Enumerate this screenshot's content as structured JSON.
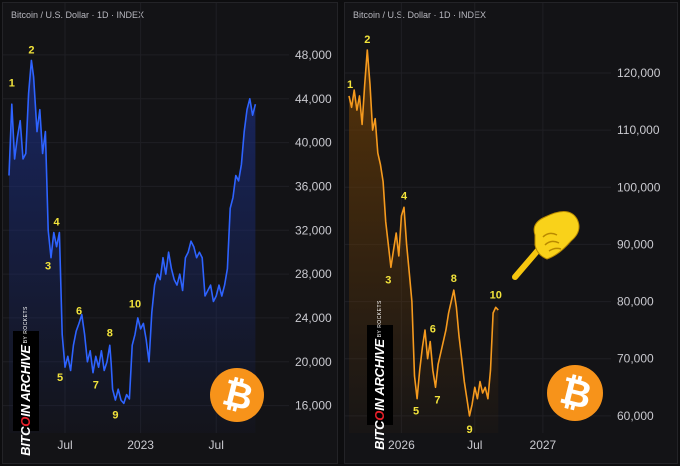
{
  "chart_data": [
    {
      "type": "line",
      "title": "Bitcoin / U.S. Dollar · 1D · INDEX",
      "line_color": "#2e63ff",
      "fill_color": "#1a2c7a",
      "ylim": [
        13500,
        50000
      ],
      "xlim": [
        0,
        100
      ],
      "y_ticks": [
        16000,
        20000,
        24000,
        28000,
        32000,
        36000,
        40000,
        44000,
        48000
      ],
      "y_tick_labels": [
        "16,000",
        "20,000",
        "24,000",
        "28,000",
        "32,000",
        "36,000",
        "40,000",
        "44,000",
        "48,000"
      ],
      "x_ticks": [
        {
          "x": 20,
          "label": "Jul"
        },
        {
          "x": 47,
          "label": "2023"
        },
        {
          "x": 74,
          "label": "Jul"
        }
      ],
      "series": [
        {
          "values": [
            [
              0,
              37000
            ],
            [
              1,
              43500
            ],
            [
              2,
              38500
            ],
            [
              3,
              40500
            ],
            [
              4,
              42000
            ],
            [
              5,
              38500
            ],
            [
              6,
              39000
            ],
            [
              7,
              44500
            ],
            [
              8,
              47500
            ],
            [
              8.8,
              46000
            ],
            [
              10,
              41000
            ],
            [
              11,
              43000
            ],
            [
              12,
              39000
            ],
            [
              13,
              41000
            ],
            [
              14,
              32000
            ],
            [
              15,
              29500
            ],
            [
              16,
              31800
            ],
            [
              17,
              30500
            ],
            [
              18,
              31800
            ],
            [
              19,
              22500
            ],
            [
              20,
              19500
            ],
            [
              21,
              20500
            ],
            [
              22,
              19200
            ],
            [
              23,
              21500
            ],
            [
              24,
              22800
            ],
            [
              25,
              23500
            ],
            [
              26,
              24300
            ],
            [
              27,
              22500
            ],
            [
              28,
              20000
            ],
            [
              29,
              21000
            ],
            [
              30,
              19000
            ],
            [
              31,
              20500
            ],
            [
              32,
              19500
            ],
            [
              33,
              21000
            ],
            [
              34,
              19200
            ],
            [
              35,
              20000
            ],
            [
              36,
              21500
            ],
            [
              36.5,
              19800
            ],
            [
              37,
              17500
            ],
            [
              38,
              16500
            ],
            [
              39,
              17500
            ],
            [
              40,
              16500
            ],
            [
              41,
              16200
            ],
            [
              42,
              17000
            ],
            [
              43,
              16600
            ],
            [
              44,
              21500
            ],
            [
              45,
              22500
            ],
            [
              46,
              24000
            ],
            [
              47,
              23000
            ],
            [
              48,
              23500
            ],
            [
              49,
              22000
            ],
            [
              50,
              20000
            ],
            [
              51,
              24500
            ],
            [
              52,
              27000
            ],
            [
              53,
              28000
            ],
            [
              54,
              27500
            ],
            [
              55,
              29500
            ],
            [
              56,
              28000
            ],
            [
              57,
              30000
            ],
            [
              58,
              28500
            ],
            [
              59,
              27500
            ],
            [
              60,
              27000
            ],
            [
              61,
              28000
            ],
            [
              62,
              26500
            ],
            [
              63,
              29500
            ],
            [
              64,
              30000
            ],
            [
              65,
              31000
            ],
            [
              66,
              30500
            ],
            [
              67,
              29500
            ],
            [
              68,
              30000
            ],
            [
              69,
              29500
            ],
            [
              70,
              26000
            ],
            [
              71,
              26500
            ],
            [
              72,
              27000
            ],
            [
              73,
              25500
            ],
            [
              74,
              26000
            ],
            [
              75,
              27000
            ],
            [
              76,
              26000
            ],
            [
              77,
              27000
            ],
            [
              78,
              28500
            ],
            [
              79,
              34000
            ],
            [
              80,
              35000
            ],
            [
              81,
              37000
            ],
            [
              82,
              36500
            ],
            [
              83,
              38000
            ],
            [
              84,
              41000
            ],
            [
              85,
              43000
            ],
            [
              86,
              44000
            ],
            [
              87,
              42500
            ],
            [
              88,
              43500
            ]
          ]
        }
      ],
      "annotations": [
        {
          "label": "1",
          "x": 1,
          "y": 44500,
          "dx": 0,
          "dy": -7
        },
        {
          "label": "2",
          "x": 8,
          "y": 47500,
          "dx": 0,
          "dy": -7
        },
        {
          "label": "3",
          "x": 15,
          "y": 29500,
          "dx": -3,
          "dy": 12
        },
        {
          "label": "4",
          "x": 17,
          "y": 31800,
          "dx": 0,
          "dy": -7
        },
        {
          "label": "5",
          "x": 20,
          "y": 19500,
          "dx": -5,
          "dy": 14
        },
        {
          "label": "6",
          "x": 25,
          "y": 23500,
          "dx": 0,
          "dy": -9
        },
        {
          "label": "7",
          "x": 31,
          "y": 19000,
          "dx": 0,
          "dy": 16
        },
        {
          "label": "8",
          "x": 36,
          "y": 21500,
          "dx": 0,
          "dy": -9
        },
        {
          "label": "9",
          "x": 38,
          "y": 16200,
          "dx": 0,
          "dy": 15
        },
        {
          "label": "10",
          "x": 45,
          "y": 23500,
          "dx": 0,
          "dy": -16
        }
      ]
    },
    {
      "type": "line",
      "title": "Bitcoin / U.S. Dollar · 1D · INDEX",
      "line_color": "#f59a1e",
      "fill_color": "#6b3d05",
      "ylim": [
        57000,
        127000
      ],
      "xlim": [
        0,
        100
      ],
      "y_ticks": [
        60000,
        70000,
        80000,
        90000,
        100000,
        110000,
        120000
      ],
      "y_tick_labels": [
        "60,000",
        "70,000",
        "80,000",
        "90,000",
        "100,000",
        "110,000",
        "120,000"
      ],
      "x_ticks": [
        {
          "x": 20,
          "label": "2026"
        },
        {
          "x": 48,
          "label": "Jul"
        },
        {
          "x": 74,
          "label": "2027"
        }
      ],
      "series": [
        {
          "values": [
            [
              0,
              116000
            ],
            [
              1,
              114000
            ],
            [
              2,
              117000
            ],
            [
              3,
              113500
            ],
            [
              4,
              116000
            ],
            [
              5,
              111000
            ],
            [
              6,
              118000
            ],
            [
              7,
              124000
            ],
            [
              8,
              118000
            ],
            [
              9,
              110000
            ],
            [
              10,
              112000
            ],
            [
              11,
              106000
            ],
            [
              12,
              104000
            ],
            [
              13,
              101000
            ],
            [
              14,
              94000
            ],
            [
              15,
              90000
            ],
            [
              16,
              86000
            ],
            [
              17,
              89000
            ],
            [
              18,
              92000
            ],
            [
              19,
              88000
            ],
            [
              20,
              95000
            ],
            [
              21,
              96500
            ],
            [
              22,
              90000
            ],
            [
              23,
              85000
            ],
            [
              24,
              80000
            ],
            [
              25,
              67000
            ],
            [
              26,
              63000
            ],
            [
              27,
              68000
            ],
            [
              28,
              72000
            ],
            [
              29,
              75000
            ],
            [
              30,
              70000
            ],
            [
              31,
              73000
            ],
            [
              32,
              68000
            ],
            [
              33,
              65000
            ],
            [
              34,
              69000
            ],
            [
              35,
              71000
            ],
            [
              36,
              73000
            ],
            [
              37,
              75000
            ],
            [
              38,
              78000
            ],
            [
              39,
              80000
            ],
            [
              40,
              82000
            ],
            [
              41,
              79000
            ],
            [
              42,
              74000
            ],
            [
              43,
              70000
            ],
            [
              44,
              66000
            ],
            [
              45,
              63000
            ],
            [
              46,
              60000
            ],
            [
              47,
              62000
            ],
            [
              48,
              65000
            ],
            [
              49,
              63000
            ],
            [
              50,
              66000
            ],
            [
              51,
              64000
            ],
            [
              52,
              65000
            ],
            [
              53,
              63000
            ],
            [
              54,
              68000
            ],
            [
              55,
              78000
            ],
            [
              56,
              79000
            ],
            [
              57,
              78500
            ]
          ]
        }
      ],
      "annotations": [
        {
          "label": "1",
          "x": 0,
          "y": 116000,
          "dx": 1,
          "dy": -8
        },
        {
          "label": "2",
          "x": 7,
          "y": 124000,
          "dx": 0,
          "dy": -7
        },
        {
          "label": "3",
          "x": 15,
          "y": 86000,
          "dx": 0,
          "dy": 16
        },
        {
          "label": "4",
          "x": 21,
          "y": 96500,
          "dx": 0,
          "dy": -8
        },
        {
          "label": "5",
          "x": 26,
          "y": 63000,
          "dx": -1,
          "dy": 16
        },
        {
          "label": "6",
          "x": 32,
          "y": 73000,
          "dx": 0,
          "dy": -9
        },
        {
          "label": "7",
          "x": 33,
          "y": 65000,
          "dx": 2,
          "dy": 16
        },
        {
          "label": "8",
          "x": 40,
          "y": 82000,
          "dx": 0,
          "dy": -8
        },
        {
          "label": "9",
          "x": 46,
          "y": 60000,
          "dx": 0,
          "dy": 17
        },
        {
          "label": "10",
          "x": 56,
          "y": 79000,
          "dx": 0,
          "dy": -9
        }
      ]
    }
  ],
  "watermark": {
    "main_a": "BITC",
    "main_o": "O",
    "main_b": "IN ARCHIVE",
    "sub": "BY ROCKETS"
  },
  "colors": {
    "annotation": "#f2e33b",
    "axis_text": "#c9c9cf",
    "grid": "#1f1f24",
    "coin": "#f7931a"
  },
  "icons": {
    "coin": "bitcoin-icon",
    "hand": "pointing-hand-icon"
  }
}
